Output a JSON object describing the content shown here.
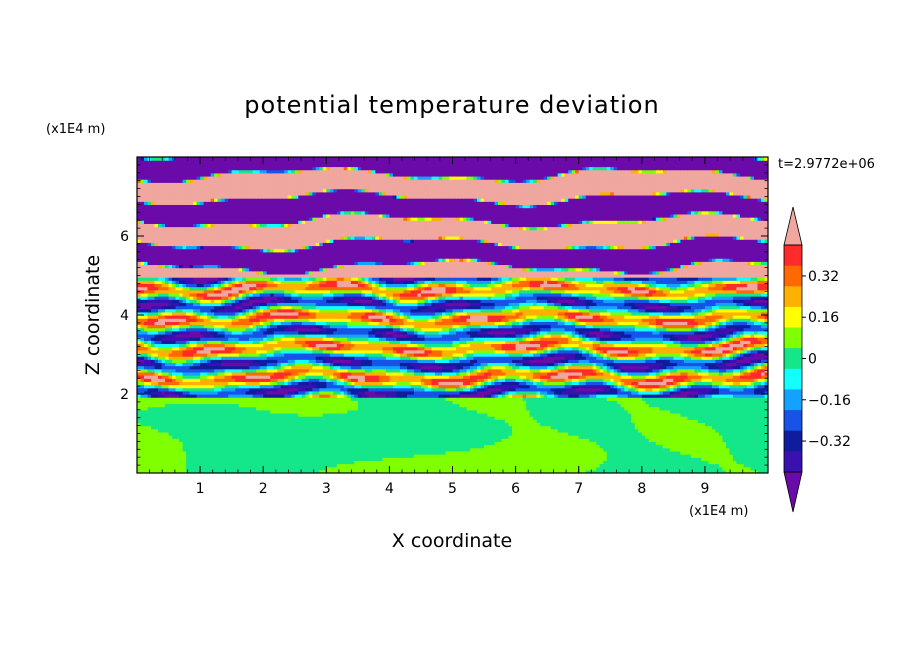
{
  "chart_data": {
    "type": "heatmap",
    "title": "potential temperature deviation",
    "xlabel": "X coordinate",
    "ylabel": "Z coordinate",
    "x_unit": "(x1E4 m)",
    "z_unit": "(x1E4 m)",
    "time_label": "t=2.9772e+06",
    "xlim": [
      0,
      10
    ],
    "zlim": [
      0,
      8
    ],
    "x_ticks": [
      "1",
      "2",
      "3",
      "4",
      "5",
      "6",
      "7",
      "8",
      "9"
    ],
    "z_ticks": [
      "2",
      "4",
      "6"
    ],
    "colorbar": {
      "levels": [
        -0.48,
        -0.4,
        -0.32,
        -0.24,
        -0.16,
        -0.08,
        0,
        0.08,
        0.16,
        0.24,
        0.32,
        0.4,
        0.48
      ],
      "colors": [
        "#6a0aa8",
        "#3b10b0",
        "#0f1c9e",
        "#1653e6",
        "#14a2ff",
        "#12ffff",
        "#14e68a",
        "#80ff00",
        "#ffff00",
        "#ffb000",
        "#ff6a00",
        "#ff2a2a",
        "#f0a7a0"
      ],
      "tick_labels": [
        "0.32",
        "0.16",
        "0",
        "−0.16",
        "−0.32"
      ],
      "tick_values": [
        0.32,
        0.16,
        0,
        -0.16,
        -0.32
      ],
      "extend": "both"
    },
    "fields": {
      "lower_layer": {
        "z_range": [
          0,
          1.9
        ],
        "value_range": [
          0.0,
          0.1
        ]
      },
      "middle_layer": {
        "z_range": [
          1.9,
          5.0
        ],
        "value_range": [
          -0.48,
          0.48
        ]
      },
      "upper_layer": {
        "z_range": [
          5.0,
          8.0
        ],
        "value_range": [
          -0.48,
          0.48
        ]
      }
    }
  }
}
